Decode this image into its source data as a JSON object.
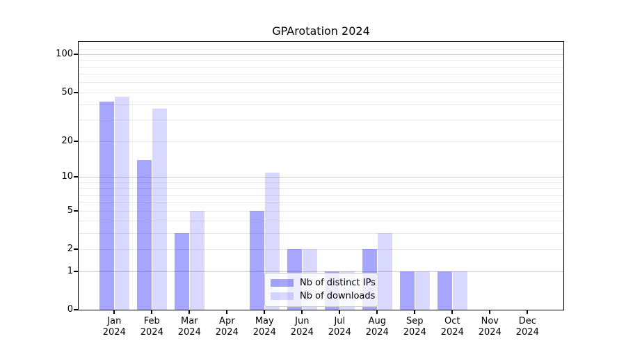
{
  "chart_data": {
    "type": "bar",
    "title": "GPArotation 2024",
    "categories": [
      "Jan",
      "Feb",
      "Mar",
      "Apr",
      "May",
      "Jun",
      "Jul",
      "Aug",
      "Sep",
      "Oct",
      "Nov",
      "Dec"
    ],
    "category_year": "2024",
    "series": [
      {
        "name": "Nb of distinct IPs",
        "color": "rgba(0,0,255,0.35)",
        "values": [
          42,
          14,
          3,
          0,
          5,
          2,
          1,
          2,
          1,
          1,
          0,
          0
        ]
      },
      {
        "name": "Nb of downloads",
        "color": "rgba(0,0,255,0.15)",
        "values": [
          46,
          37,
          5,
          0,
          11,
          2,
          1,
          3,
          1,
          1,
          0,
          0
        ]
      }
    ],
    "yscale": "log1p",
    "ylim": [
      0,
      121
    ],
    "ytick_labels": [
      "0",
      "1",
      "2",
      "5",
      "10",
      "20",
      "50",
      "100"
    ],
    "yticks": [
      0,
      1,
      2,
      5,
      10,
      20,
      50,
      100
    ],
    "minor_yticks": [
      2,
      3,
      4,
      5,
      6,
      7,
      8,
      9,
      20,
      30,
      40,
      50,
      60,
      70,
      80,
      90,
      110
    ],
    "major_gridlines": [
      1,
      10,
      100
    ],
    "grid": true,
    "legend_position": "lower-center",
    "colors": {
      "major_grid": "#c6c6c6",
      "minor_grid": "#e9e9e9",
      "spine": "#000000",
      "background": "#ffffff"
    }
  }
}
